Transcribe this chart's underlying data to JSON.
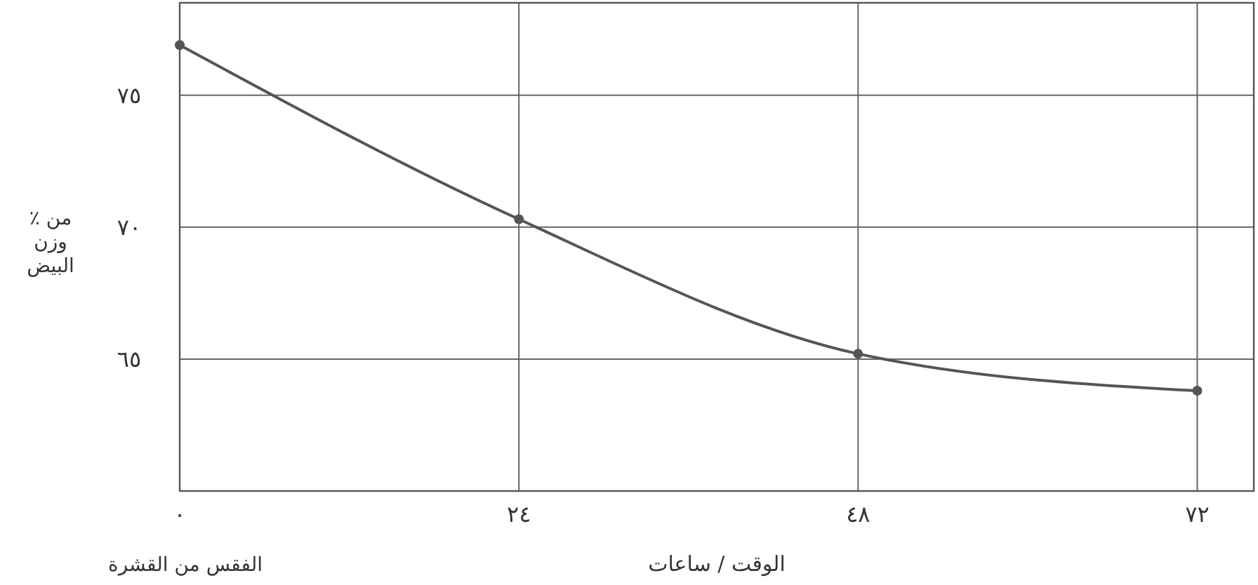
{
  "chart_data": {
    "type": "line",
    "xlabel": "الوقت / ساعات",
    "ylabel": "٪ من\nوزن\nالبيض",
    "annotations": [
      "الفقس من القشرة"
    ],
    "x": [
      0,
      24,
      48,
      72
    ],
    "series": [
      {
        "color": "#555555",
        "values": [
          76.9,
          70.3,
          65.2,
          63.8
        ]
      }
    ],
    "xlim": [
      0,
      76
    ],
    "ylim": [
      60,
      78.5
    ],
    "xticks": [
      {
        "value": 0,
        "label": "٠"
      },
      {
        "value": 24,
        "label": "٢٤"
      },
      {
        "value": 48,
        "label": "٤٨"
      },
      {
        "value": 72,
        "label": "٧٢"
      }
    ],
    "yticks": [
      {
        "value": 65,
        "label": "٦٥"
      },
      {
        "value": 70,
        "label": "٧٠"
      },
      {
        "value": 75,
        "label": "٧٥"
      }
    ],
    "grid": true,
    "marker": "circle",
    "line_style": "solid"
  }
}
